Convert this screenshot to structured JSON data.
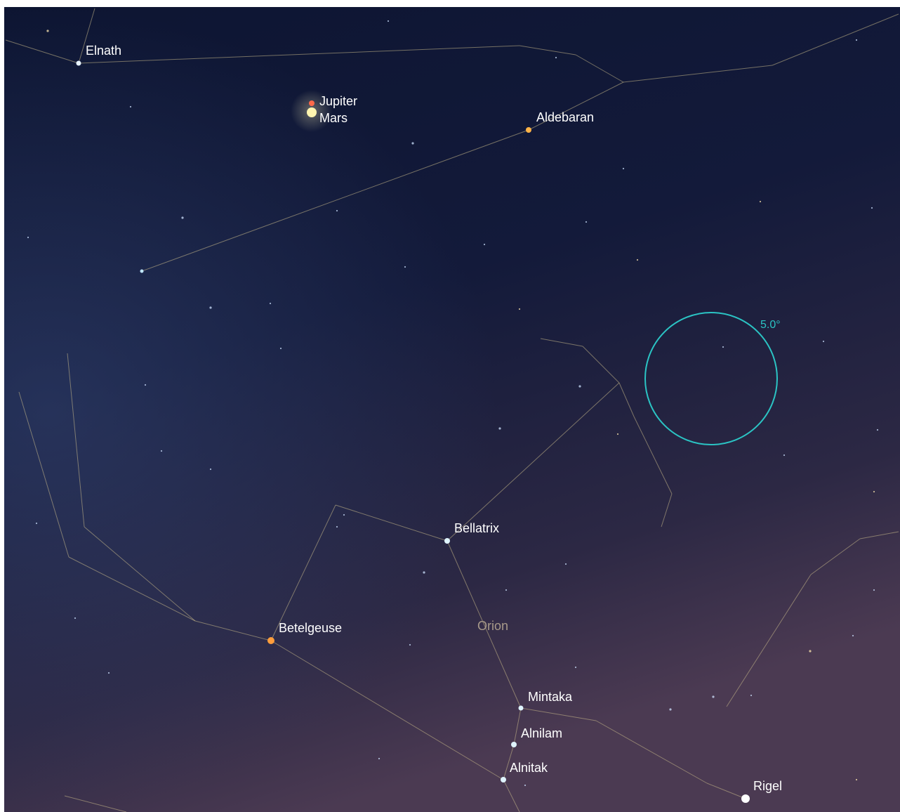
{
  "stars": [
    "Elnath",
    "Jupiter",
    "Mars",
    "Aldebaran",
    "Bellatrix",
    "Betelgeuse",
    "Mintaka",
    "Alnilam",
    "Alnitak",
    "Rigel"
  ],
  "constellation": "Orion",
  "fov_circle": "5.0°"
}
